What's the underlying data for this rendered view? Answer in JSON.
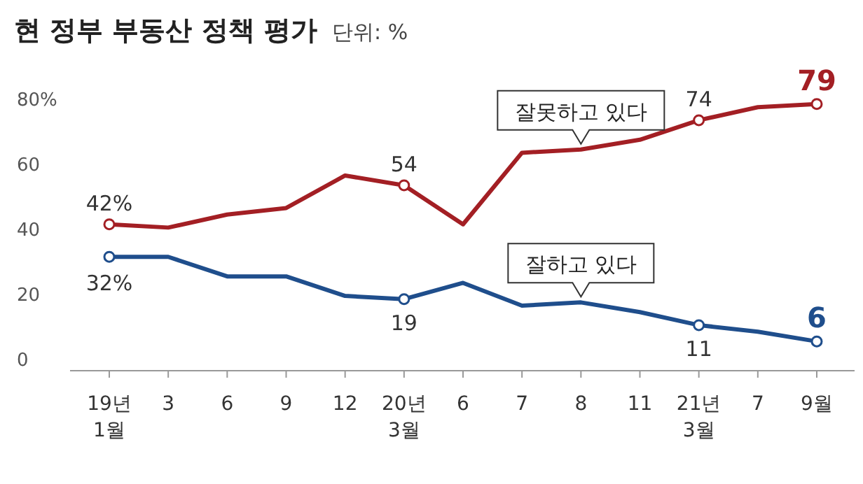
{
  "chart_data": {
    "type": "line",
    "title": "현 정부 부동산 정책 평가",
    "subtitle": "단위: %",
    "categories": [
      "19년\n1월",
      "3",
      "6",
      "9",
      "12",
      "20년\n3월",
      "6",
      "7",
      "8",
      "11",
      "21년\n3월",
      "7",
      "9월"
    ],
    "series": [
      {
        "name": "잘못하고 있다",
        "color": "#a31f24",
        "values": [
          42,
          41,
          45,
          47,
          57,
          54,
          42,
          64,
          65,
          68,
          74,
          78,
          79
        ],
        "value_labels": [
          "42%",
          null,
          null,
          null,
          null,
          "54",
          null,
          null,
          null,
          null,
          "74",
          null,
          "79"
        ]
      },
      {
        "name": "잘하고 있다",
        "color": "#1f4e8c",
        "values": [
          32,
          32,
          26,
          26,
          20,
          19,
          24,
          17,
          18,
          15,
          11,
          9,
          6
        ],
        "value_labels": [
          "32%",
          null,
          null,
          null,
          null,
          "19",
          null,
          null,
          null,
          null,
          "11",
          null,
          "6"
        ]
      }
    ],
    "ylim": [
      -3,
      80
    ],
    "yticks": [
      0,
      20,
      40,
      60,
      {
        "value": 80,
        "label": "80%"
      }
    ],
    "line_style": "solid",
    "grid": false
  }
}
